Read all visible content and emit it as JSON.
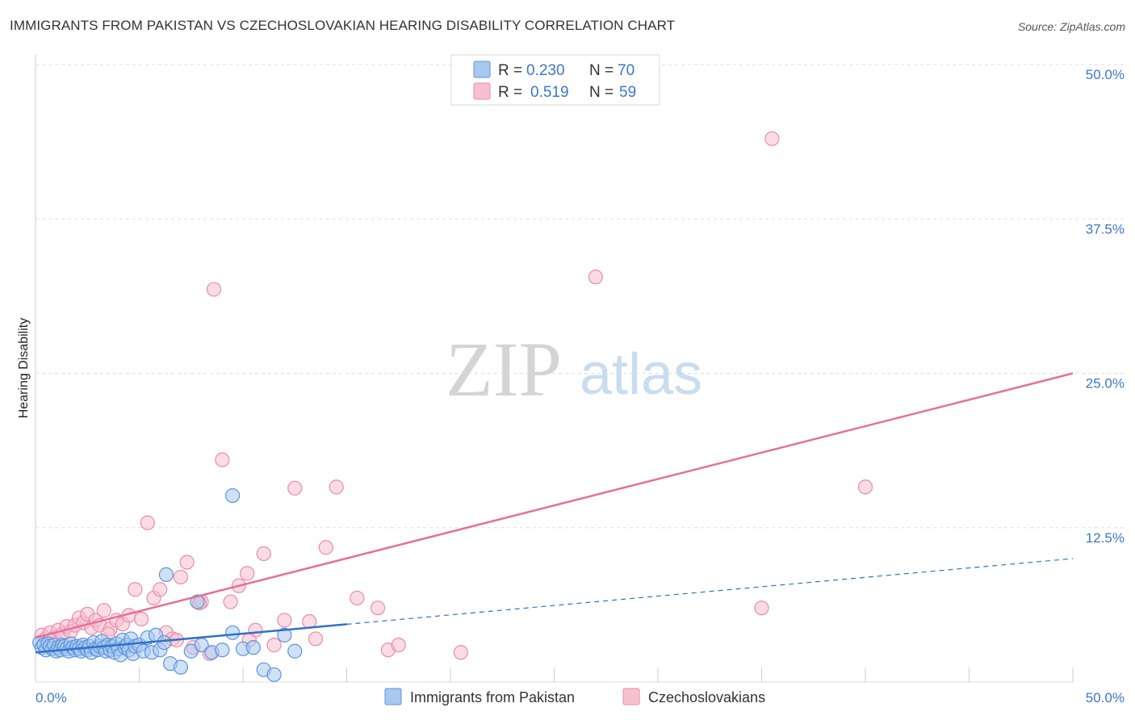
{
  "header": {
    "title": "IMMIGRANTS FROM PAKISTAN VS CZECHOSLOVAKIAN HEARING DISABILITY CORRELATION CHART",
    "source": "Source: ZipAtlas.com"
  },
  "watermark": {
    "zip": "ZIP",
    "atlas": "atlas"
  },
  "legend": {
    "r_label": "R =",
    "n_label": "N =",
    "rows": [
      {
        "r": "0.230",
        "n": "70"
      },
      {
        "r": "0.519",
        "n": "59"
      }
    ]
  },
  "colors": {
    "blue_fill": "#a9c8ef",
    "blue_stroke": "#5b95de",
    "blue_line": "#2f72c8",
    "pink_fill": "#f7c0d0",
    "pink_stroke": "#ec8aa8",
    "pink_line": "#e5709a",
    "accent_text": "#3b77c8"
  },
  "chart_data": {
    "type": "scatter",
    "title": "IMMIGRANTS FROM PAKISTAN VS CZECHOSLOVAKIAN HEARING DISABILITY CORRELATION CHART",
    "xlabel": "",
    "ylabel": "Hearing Disability",
    "xlim": [
      0,
      50
    ],
    "ylim": [
      0,
      50
    ],
    "x_tick_labels": [
      "0.0%",
      "50.0%"
    ],
    "y_tick_labels": [
      "12.5%",
      "25.0%",
      "37.5%",
      "50.0%"
    ],
    "y_ticks": [
      12.5,
      25.0,
      37.5,
      50.0
    ],
    "grid": true,
    "legend_position": "top-center",
    "series": [
      {
        "name": "Immigrants from Pakistan",
        "R": 0.23,
        "N": 70,
        "trend": {
          "x0": 0,
          "y0": 2.4,
          "x_solid_end": 15,
          "x1": 50,
          "y1": 10.0
        },
        "points": [
          [
            0.2,
            3.2
          ],
          [
            0.3,
            2.8
          ],
          [
            0.4,
            3.0
          ],
          [
            0.5,
            2.6
          ],
          [
            0.6,
            3.1
          ],
          [
            0.7,
            2.9
          ],
          [
            0.8,
            2.7
          ],
          [
            0.9,
            3.0
          ],
          [
            1.0,
            2.5
          ],
          [
            1.1,
            2.8
          ],
          [
            1.2,
            2.6
          ],
          [
            1.3,
            3.0
          ],
          [
            1.4,
            2.9
          ],
          [
            1.5,
            2.7
          ],
          [
            1.6,
            2.5
          ],
          [
            1.7,
            3.1
          ],
          [
            1.8,
            2.8
          ],
          [
            1.9,
            2.6
          ],
          [
            2.0,
            2.9
          ],
          [
            2.1,
            2.7
          ],
          [
            2.2,
            2.5
          ],
          [
            2.3,
            3.0
          ],
          [
            2.4,
            2.8
          ],
          [
            2.5,
            2.6
          ],
          [
            2.6,
            2.9
          ],
          [
            2.7,
            2.4
          ],
          [
            2.8,
            3.2
          ],
          [
            2.9,
            2.7
          ],
          [
            3.0,
            2.6
          ],
          [
            3.1,
            2.9
          ],
          [
            3.2,
            3.3
          ],
          [
            3.3,
            2.8
          ],
          [
            3.4,
            2.5
          ],
          [
            3.5,
            3.0
          ],
          [
            3.6,
            2.6
          ],
          [
            3.7,
            2.9
          ],
          [
            3.8,
            2.4
          ],
          [
            3.9,
            3.1
          ],
          [
            4.0,
            2.7
          ],
          [
            4.1,
            2.2
          ],
          [
            4.2,
            3.4
          ],
          [
            4.3,
            2.8
          ],
          [
            4.4,
            3.0
          ],
          [
            4.5,
            2.6
          ],
          [
            4.6,
            3.5
          ],
          [
            4.7,
            2.3
          ],
          [
            4.8,
            2.9
          ],
          [
            5.0,
            3.0
          ],
          [
            5.2,
            2.5
          ],
          [
            5.4,
            3.6
          ],
          [
            5.6,
            2.4
          ],
          [
            5.8,
            3.8
          ],
          [
            6.0,
            2.6
          ],
          [
            6.2,
            3.2
          ],
          [
            6.5,
            1.5
          ],
          [
            7.0,
            1.2
          ],
          [
            7.5,
            2.5
          ],
          [
            8.0,
            3.0
          ],
          [
            8.5,
            2.4
          ],
          [
            9.0,
            2.6
          ],
          [
            9.5,
            4.0
          ],
          [
            10.0,
            2.7
          ],
          [
            10.5,
            2.8
          ],
          [
            11.0,
            1.0
          ],
          [
            11.5,
            0.6
          ],
          [
            12.0,
            3.8
          ],
          [
            12.5,
            2.5
          ],
          [
            6.3,
            8.7
          ],
          [
            7.8,
            6.5
          ],
          [
            9.5,
            15.1
          ]
        ]
      },
      {
        "name": "Czechoslovakians",
        "R": 0.519,
        "N": 59,
        "trend": {
          "x0": 0,
          "y0": 3.6,
          "x1": 50,
          "y1": 25.0
        },
        "points": [
          [
            0.3,
            3.8
          ],
          [
            0.5,
            3.5
          ],
          [
            0.7,
            4.0
          ],
          [
            0.9,
            3.6
          ],
          [
            1.1,
            4.2
          ],
          [
            1.3,
            3.9
          ],
          [
            1.5,
            4.5
          ],
          [
            1.7,
            4.1
          ],
          [
            1.9,
            4.6
          ],
          [
            2.1,
            5.2
          ],
          [
            2.3,
            4.8
          ],
          [
            2.5,
            5.5
          ],
          [
            2.7,
            4.4
          ],
          [
            2.9,
            5.0
          ],
          [
            3.1,
            4.6
          ],
          [
            3.3,
            5.8
          ],
          [
            3.6,
            4.3
          ],
          [
            3.9,
            5.0
          ],
          [
            4.2,
            4.7
          ],
          [
            4.5,
            5.4
          ],
          [
            4.8,
            7.5
          ],
          [
            5.1,
            5.1
          ],
          [
            5.4,
            12.9
          ],
          [
            5.7,
            6.8
          ],
          [
            6.0,
            7.5
          ],
          [
            6.3,
            4.0
          ],
          [
            6.6,
            3.5
          ],
          [
            7.0,
            8.5
          ],
          [
            7.3,
            9.7
          ],
          [
            7.6,
            2.8
          ],
          [
            8.0,
            6.5
          ],
          [
            8.4,
            2.3
          ],
          [
            8.6,
            31.8
          ],
          [
            9.0,
            18.0
          ],
          [
            9.4,
            6.5
          ],
          [
            9.8,
            7.8
          ],
          [
            10.2,
            8.8
          ],
          [
            10.6,
            4.2
          ],
          [
            11.0,
            10.4
          ],
          [
            11.5,
            3.0
          ],
          [
            12.0,
            5.0
          ],
          [
            12.5,
            15.7
          ],
          [
            13.5,
            3.5
          ],
          [
            14.0,
            10.9
          ],
          [
            14.5,
            15.8
          ],
          [
            15.5,
            6.8
          ],
          [
            16.5,
            6.0
          ],
          [
            17.0,
            2.6
          ],
          [
            17.5,
            3.0
          ],
          [
            20.5,
            2.4
          ],
          [
            3.5,
            3.9
          ],
          [
            6.8,
            3.4
          ],
          [
            7.9,
            6.4
          ],
          [
            10.3,
            3.4
          ],
          [
            13.2,
            4.9
          ],
          [
            27.0,
            32.8
          ],
          [
            35.5,
            44.0
          ],
          [
            35.0,
            6.0
          ],
          [
            40.0,
            15.8
          ]
        ]
      }
    ]
  },
  "bottom_legend": {
    "items": [
      "Immigrants from Pakistan",
      "Czechoslovakians"
    ]
  }
}
